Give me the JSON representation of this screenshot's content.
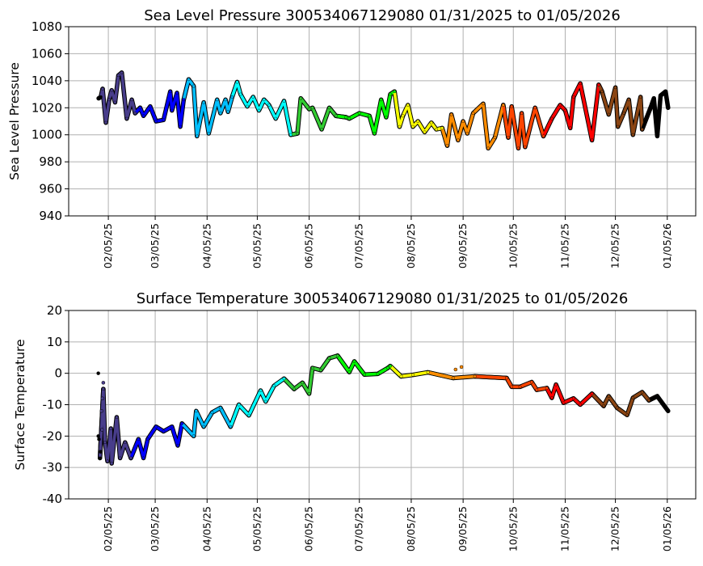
{
  "chart_data": [
    {
      "type": "line",
      "title": "Sea Level Pressure 300534067129080  01/31/2025 to 01/05/2026",
      "xlabel": "",
      "ylabel": "Sea Level Pressure",
      "x_units": "days since 01/31/2025",
      "xlim": [
        -18.7,
        356
      ],
      "ylim": [
        940,
        1080
      ],
      "yticks": [
        940,
        960,
        980,
        1000,
        1020,
        1040,
        1060,
        1080
      ],
      "xticks": [
        {
          "day": 5,
          "label": "02/05/25"
        },
        {
          "day": 33,
          "label": "03/05/25"
        },
        {
          "day": 64,
          "label": "04/05/25"
        },
        {
          "day": 94,
          "label": "05/05/25"
        },
        {
          "day": 125,
          "label": "06/05/25"
        },
        {
          "day": 155,
          "label": "07/05/25"
        },
        {
          "day": 186,
          "label": "08/05/25"
        },
        {
          "day": 217,
          "label": "09/05/25"
        },
        {
          "day": 247,
          "label": "10/05/25"
        },
        {
          "day": 278,
          "label": "11/05/25"
        },
        {
          "day": 308,
          "label": "12/05/25"
        },
        {
          "day": 339,
          "label": "01/05/26"
        }
      ],
      "grid": true,
      "points": [
        [
          -0.8,
          1027
        ],
        [
          0.5,
          1028
        ],
        [
          1.6,
          1034
        ],
        [
          3.5,
          1009
        ],
        [
          5.5,
          1026
        ],
        [
          7,
          1033
        ],
        [
          9,
          1024
        ],
        [
          11,
          1044
        ],
        [
          13,
          1046
        ],
        [
          16,
          1012
        ],
        [
          19,
          1026
        ],
        [
          21,
          1016
        ],
        [
          24,
          1020
        ],
        [
          26,
          1014
        ],
        [
          30,
          1021
        ],
        [
          33.5,
          1010
        ],
        [
          38,
          1011
        ],
        [
          42,
          1032
        ],
        [
          43,
          1018
        ],
        [
          46,
          1031
        ],
        [
          48,
          1006
        ],
        [
          50,
          1026
        ],
        [
          53,
          1041
        ],
        [
          56,
          1036
        ],
        [
          58,
          999
        ],
        [
          62,
          1024
        ],
        [
          65,
          1001
        ],
        [
          70,
          1026
        ],
        [
          72,
          1016
        ],
        [
          75,
          1026
        ],
        [
          76.5,
          1017
        ],
        [
          79,
          1028
        ],
        [
          82,
          1039
        ],
        [
          84,
          1030
        ],
        [
          88,
          1021
        ],
        [
          91.5,
          1028
        ],
        [
          95,
          1018
        ],
        [
          98,
          1026
        ],
        [
          101,
          1022
        ],
        [
          105,
          1012
        ],
        [
          110,
          1025
        ],
        [
          114,
          1000
        ],
        [
          118,
          1001
        ],
        [
          120,
          1027
        ],
        [
          125,
          1019
        ],
        [
          127,
          1020
        ],
        [
          132.5,
          1004
        ],
        [
          137,
          1020
        ],
        [
          141,
          1014
        ],
        [
          147,
          1013
        ],
        [
          149,
          1012
        ],
        [
          155,
          1016
        ],
        [
          161,
          1014
        ],
        [
          164,
          1001
        ],
        [
          168,
          1026
        ],
        [
          171,
          1013
        ],
        [
          173.5,
          1030
        ],
        [
          176,
          1032
        ],
        [
          179,
          1006
        ],
        [
          181,
          1014
        ],
        [
          184,
          1022
        ],
        [
          187,
          1006
        ],
        [
          190,
          1010
        ],
        [
          194,
          1002
        ],
        [
          198,
          1009
        ],
        [
          201,
          1004
        ],
        [
          204.5,
          1005
        ],
        [
          207.5,
          992
        ],
        [
          210,
          1015
        ],
        [
          214,
          996
        ],
        [
          217,
          1010
        ],
        [
          219.5,
          1001
        ],
        [
          223,
          1016
        ],
        [
          229,
          1023
        ],
        [
          232,
          990
        ],
        [
          236,
          998
        ],
        [
          241,
          1022
        ],
        [
          244,
          998
        ],
        [
          246,
          1021
        ],
        [
          250,
          990
        ],
        [
          252,
          1016
        ],
        [
          254,
          991
        ],
        [
          260,
          1020
        ],
        [
          265,
          999
        ],
        [
          270,
          1012
        ],
        [
          275,
          1022
        ],
        [
          278,
          1018
        ],
        [
          281,
          1005
        ],
        [
          283,
          1028
        ],
        [
          287,
          1038
        ],
        [
          294,
          996
        ],
        [
          298,
          1037
        ],
        [
          300,
          1032
        ],
        [
          304,
          1015
        ],
        [
          308,
          1035
        ],
        [
          309.5,
          1006
        ],
        [
          313,
          1016
        ],
        [
          316,
          1026
        ],
        [
          318.5,
          1000
        ],
        [
          323,
          1028
        ],
        [
          324,
          1004
        ],
        [
          329,
          1020
        ],
        [
          331,
          1027
        ],
        [
          333,
          999
        ],
        [
          335,
          1029
        ],
        [
          338,
          1032
        ],
        [
          339.5,
          1020
        ]
      ]
    },
    {
      "type": "line",
      "title": "Surface Temperature 300534067129080  01/31/2025 to 01/05/2026",
      "xlabel": "",
      "ylabel": "Surface Temperature",
      "x_units": "days since 01/31/2025",
      "xlim": [
        -18.7,
        356
      ],
      "ylim": [
        -40,
        20
      ],
      "yticks": [
        -40,
        -30,
        -20,
        -10,
        0,
        10,
        20
      ],
      "xticks": [
        {
          "day": 5,
          "label": "02/05/25"
        },
        {
          "day": 33,
          "label": "03/05/25"
        },
        {
          "day": 64,
          "label": "04/05/25"
        },
        {
          "day": 94,
          "label": "05/05/25"
        },
        {
          "day": 125,
          "label": "06/05/25"
        },
        {
          "day": 155,
          "label": "07/05/25"
        },
        {
          "day": 186,
          "label": "08/05/25"
        },
        {
          "day": 217,
          "label": "09/05/25"
        },
        {
          "day": 247,
          "label": "10/05/25"
        },
        {
          "day": 278,
          "label": "11/05/25"
        },
        {
          "day": 308,
          "label": "12/05/25"
        },
        {
          "day": 339,
          "label": "01/05/26"
        }
      ],
      "grid": true,
      "scatter_points": [
        [
          -1,
          0
        ],
        [
          -1,
          -20
        ],
        [
          -0.6,
          -21
        ],
        [
          0.3,
          -25
        ],
        [
          1,
          -12
        ],
        [
          1.5,
          -8
        ],
        [
          2,
          -3
        ],
        [
          1.2,
          -18
        ],
        [
          216,
          2
        ],
        [
          212.5,
          1.2
        ]
      ],
      "points": [
        [
          0,
          -27
        ],
        [
          2,
          -5
        ],
        [
          3,
          -22
        ],
        [
          4.5,
          -28
        ],
        [
          6.5,
          -17.6
        ],
        [
          7,
          -28.7
        ],
        [
          10,
          -14
        ],
        [
          12,
          -27
        ],
        [
          15,
          -22
        ],
        [
          18.5,
          -27
        ],
        [
          23,
          -21
        ],
        [
          26,
          -27
        ],
        [
          28.5,
          -21
        ],
        [
          33.5,
          -17
        ],
        [
          38,
          -18.5
        ],
        [
          43,
          -17
        ],
        [
          46.5,
          -23
        ],
        [
          49,
          -16
        ],
        [
          56,
          -20
        ],
        [
          57.5,
          -12
        ],
        [
          62,
          -17
        ],
        [
          67,
          -12.5
        ],
        [
          72,
          -11
        ],
        [
          78,
          -17
        ],
        [
          83,
          -10
        ],
        [
          89,
          -13.4
        ],
        [
          96,
          -5.5
        ],
        [
          99,
          -9
        ],
        [
          104,
          -4
        ],
        [
          110,
          -1.7
        ],
        [
          116,
          -5
        ],
        [
          121,
          -3
        ],
        [
          125,
          -6.5
        ],
        [
          127,
          1.7
        ],
        [
          132,
          1
        ],
        [
          137,
          4.8
        ],
        [
          142,
          5.6
        ],
        [
          149,
          0.4
        ],
        [
          152,
          3.8
        ],
        [
          158,
          -0.4
        ],
        [
          166,
          -0.2
        ],
        [
          172,
          1.7
        ],
        [
          173.5,
          2.3
        ],
        [
          180,
          -1
        ],
        [
          187,
          -0.5
        ],
        [
          196,
          0.3
        ],
        [
          211,
          -1.5
        ],
        [
          224,
          -1
        ],
        [
          243,
          -1.5
        ],
        [
          246,
          -4.3
        ],
        [
          251,
          -4.3
        ],
        [
          258,
          -2.8
        ],
        [
          261,
          -5.3
        ],
        [
          267,
          -4.7
        ],
        [
          270,
          -7.8
        ],
        [
          272.5,
          -3.6
        ],
        [
          277,
          -9.4
        ],
        [
          283,
          -8
        ],
        [
          287,
          -10
        ],
        [
          294,
          -6.5
        ],
        [
          301,
          -10.4
        ],
        [
          304,
          -7.3
        ],
        [
          309,
          -11
        ],
        [
          315,
          -13.3
        ],
        [
          318.5,
          -7.8
        ],
        [
          324,
          -6
        ],
        [
          328,
          -8.6
        ],
        [
          333,
          -7.3
        ],
        [
          339.5,
          -12
        ]
      ]
    }
  ],
  "color_segments": [
    {
      "start": -5,
      "color": "#000000"
    },
    {
      "start": 1,
      "color": "#483d8b"
    },
    {
      "start": 23,
      "color": "#0000ff"
    },
    {
      "start": 53,
      "color": "#00bfff"
    },
    {
      "start": 81,
      "color": "#00ffff"
    },
    {
      "start": 115,
      "color": "#32cd32"
    },
    {
      "start": 147,
      "color": "#00ff00"
    },
    {
      "start": 177,
      "color": "#ffff00"
    },
    {
      "start": 205,
      "color": "#ff8c00"
    },
    {
      "start": 243,
      "color": "#ff4500"
    },
    {
      "start": 269,
      "color": "#ff0000"
    },
    {
      "start": 299,
      "color": "#8b4513"
    },
    {
      "start": 329,
      "color": "#000000"
    }
  ]
}
